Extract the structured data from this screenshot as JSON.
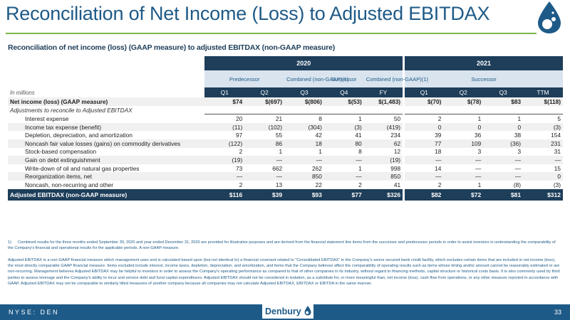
{
  "title": "Reconciliation of Net Income (Loss) to Adjusted EBITDAX",
  "subtitle": "Reconciliation of net income (loss) (GAAP measure) to adjusted EBITDAX (non-GAAP measure)",
  "colors": {
    "navy": "#1e3e5a",
    "blue": "#1e5a87",
    "green": "#7ab648",
    "light": "#d9e4ef"
  },
  "logo_icon": "denbury-drop-logo-icon",
  "table": {
    "year_2020": "2020",
    "year_2021": "2021",
    "sub_predecessor": "Predecessor",
    "sub_combined_q3": "Combined (non-GAAP)(1)",
    "sub_successor_q4": "Successor",
    "sub_combined_fy": "Combined (non-GAAP)(1)",
    "sub_successor_2021": "Successor",
    "units_label": "In millions",
    "columns": [
      "Q1",
      "Q2",
      "Q3",
      "Q4",
      "FY",
      "Q1",
      "Q2",
      "Q3",
      "TTM"
    ],
    "rows": [
      {
        "label": "Net income (loss) (GAAP measure)",
        "values": [
          "$74",
          "$(697)",
          "$(806)",
          "$(53)",
          "$(1,483)",
          "$(70)",
          "$(78)",
          "$83",
          "$(118)"
        ]
      },
      {
        "label": "Adjustments to reconcile to Adjusted EBITDAX",
        "values": [
          "",
          "",
          "",
          "",
          "",
          "",
          "",
          "",
          ""
        ]
      },
      {
        "label": "Interest expense",
        "values": [
          "20",
          "21",
          "8",
          "1",
          "50",
          "2",
          "1",
          "1",
          "5"
        ]
      },
      {
        "label": "Income tax expense (benefit)",
        "values": [
          "(11)",
          "(102)",
          "(304)",
          "(3)",
          "(419)",
          "0",
          "0",
          "0",
          "(3)"
        ]
      },
      {
        "label": "Depletion, depreciation, and amortization",
        "values": [
          "97",
          "55",
          "42",
          "41",
          "234",
          "39",
          "36",
          "38",
          "154"
        ]
      },
      {
        "label": "Noncash fair value losses (gains) on commodity derivatives",
        "values": [
          "(122)",
          "86",
          "18",
          "80",
          "62",
          "77",
          "109",
          "(36)",
          "231"
        ]
      },
      {
        "label": "Stock-based compensation",
        "values": [
          "2",
          "1",
          "1",
          "8",
          "12",
          "18",
          "3",
          "3",
          "31"
        ]
      },
      {
        "label": "Gain on debt extinguishment",
        "values": [
          "(19)",
          "—",
          "—",
          "—",
          "(19)",
          "—",
          "—",
          "—",
          "—"
        ]
      },
      {
        "label": "Write-down of oil and natural gas properties",
        "values": [
          "73",
          "662",
          "262",
          "1",
          "998",
          "14",
          "—",
          "—",
          "15"
        ]
      },
      {
        "label": "Reorganization items, net",
        "values": [
          "—",
          "—",
          "850",
          "—",
          "850",
          "—",
          "—",
          "—",
          "0"
        ]
      },
      {
        "label": "Noncash, non-recurring and other",
        "values": [
          "2",
          "13",
          "22",
          "2",
          "41",
          "2",
          "1",
          "(8)",
          "(3)"
        ]
      }
    ],
    "total": {
      "label": "Adjusted EBITDAX (non-GAAP measure)",
      "values": [
        "$116",
        "$39",
        "$93",
        "$77",
        "$326",
        "$82",
        "$72",
        "$81",
        "$312"
      ]
    }
  },
  "footnote_number": "1)",
  "footnote_text": "Combined results for the three months ended September 30, 2020 and year ended December 31, 2020 are provided for illustrative purposes and are derived from the financial statement line items from the successor and predecessor periods in order to assist investors in understanding the comparability of the Company's financial and operational results for the applicable periods. A non-GAAP measure.",
  "body_text": "Adjusted EBITDAX is a non-GAAP financial measure which management uses and is calculated based upon (but not identical to) a financial covenant related to “Consolidated EBITDAX” in the Company's senior secured bank credit facility, which excludes certain items that are included in net income (loss), the most directly comparable GAAP financial measure. Items excluded include interest, income taxes, depletion, depreciation, and amortization, and items that the Company believes affect the comparability of operating results such as items whose timing and/or amount cannot be reasonably estimated or are non-recurring. Management believes Adjusted EBITDAX may be helpful to investors in order to assess the Company's operating performance as compared to that of other companies in its industry, without regard to financing methods, capital structure or historical costs basis. It is also commonly used by third parties to assess leverage and the Company's ability to incur and service debt and fund capital expenditures. Adjusted EBITDAX should not be considered in isolation, as a substitute for, or more meaningful than, net income (loss), cash flow from operations, or any other measure reported in accordance with GAAP. Adjusted EBITDAX may not be comparable to similarly titled measures of another company because all companies may not calculate Adjusted EBITDAX, EBITDAX or EBITDA in the same manner.",
  "footer": {
    "ticker": "NYSE: DEN",
    "brand": "Denbury",
    "page": "33"
  }
}
